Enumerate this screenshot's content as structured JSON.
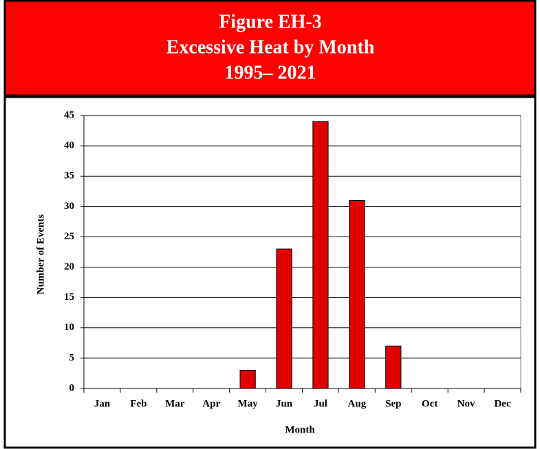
{
  "chart_data": {
    "type": "bar",
    "title": [
      "Figure EH-3",
      "Excessive Heat by Month",
      "1995– 2021"
    ],
    "x_label": "Month",
    "y_label": "Number of Events",
    "categories": [
      "Jan",
      "Feb",
      "Mar",
      "Apr",
      "May",
      "Jun",
      "Jul",
      "Aug",
      "Sep",
      "Oct",
      "Nov",
      "Dec"
    ],
    "values": [
      0,
      0,
      0,
      0,
      3,
      23,
      44,
      31,
      7,
      0,
      0,
      0
    ],
    "color": "#e00000",
    "ylim": [
      0,
      45
    ],
    "yticks": [
      0,
      5,
      10,
      15,
      20,
      25,
      30,
      35,
      40,
      45
    ],
    "grid": true
  }
}
